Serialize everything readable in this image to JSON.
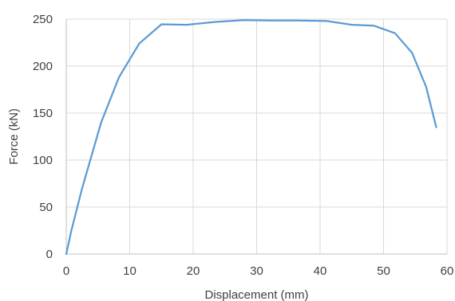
{
  "chart_data": {
    "type": "line",
    "title": "",
    "xlabel": "Displacement (mm)",
    "ylabel": "Force (kN)",
    "xlim": [
      0,
      60
    ],
    "ylim": [
      0,
      250
    ],
    "x_ticks": [
      0,
      10,
      20,
      30,
      40,
      50,
      60
    ],
    "y_ticks": [
      0,
      50,
      100,
      150,
      200,
      250
    ],
    "grid": {
      "vertical": true,
      "horizontal": true
    },
    "legend": "none",
    "series": [
      {
        "color": "#5b9bd5",
        "points": [
          [
            0.0,
            0
          ],
          [
            0.8,
            25
          ],
          [
            2.5,
            70
          ],
          [
            5.5,
            140
          ],
          [
            8.3,
            188
          ],
          [
            11.5,
            224
          ],
          [
            15.0,
            244.5
          ],
          [
            19.0,
            244
          ],
          [
            23.5,
            247
          ],
          [
            28.0,
            249
          ],
          [
            32.0,
            248.5
          ],
          [
            36.5,
            248.5
          ],
          [
            41.0,
            248
          ],
          [
            45.0,
            244
          ],
          [
            48.5,
            243
          ],
          [
            51.8,
            235
          ],
          [
            54.5,
            214
          ],
          [
            56.7,
            178
          ],
          [
            58.3,
            135
          ]
        ]
      }
    ]
  }
}
